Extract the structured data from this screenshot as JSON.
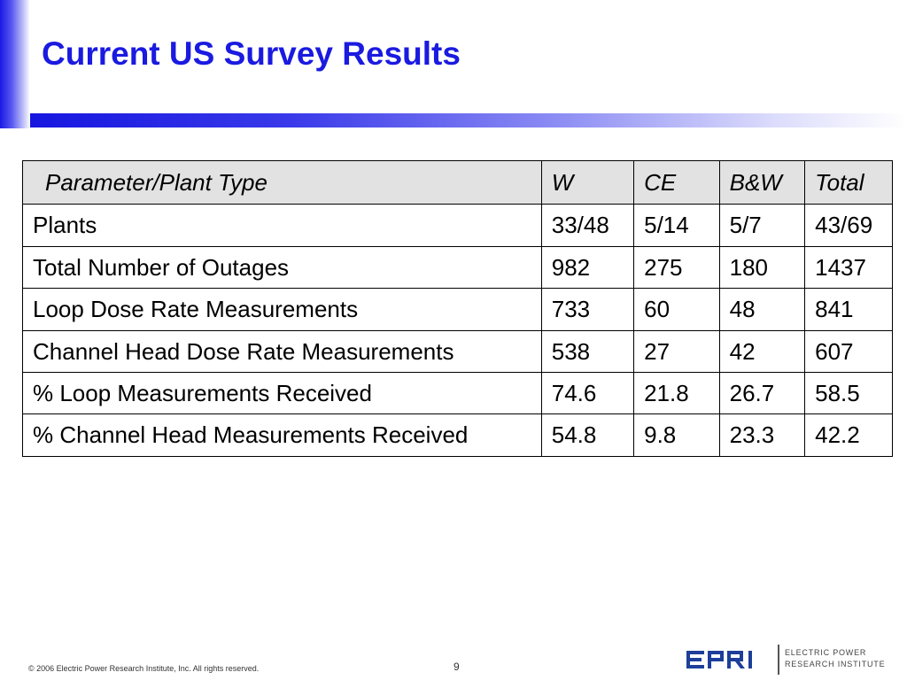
{
  "slide": {
    "title": "Current US Survey Results",
    "footer": {
      "copyright": "© 2006 Electric Power Research Institute, Inc. All rights reserved.",
      "page_number": "9"
    },
    "logo": {
      "mark_text": "EPRI",
      "name_line1": "ELECTRIC POWER",
      "name_line2": "RESEARCH INSTITUTE"
    }
  },
  "colors": {
    "title": "#1a1ae0",
    "accent_bar": "#1616e0",
    "header_fill": "#e2e2e2",
    "logo_blue": "#1d3f9a"
  },
  "table": {
    "headers": [
      "Parameter/Plant Type",
      "W",
      "CE",
      "B&W",
      "Total"
    ],
    "rows": [
      [
        "Plants",
        "33/48",
        "5/14",
        "5/7",
        "43/69"
      ],
      [
        "Total Number of Outages",
        "982",
        "275",
        "180",
        "1437"
      ],
      [
        "Loop Dose Rate Measurements",
        "733",
        "60",
        "48",
        "841"
      ],
      [
        "Channel Head Dose Rate Measurements",
        "538",
        "27",
        "42",
        "607"
      ],
      [
        "% Loop Measurements Received",
        "74.6",
        "21.8",
        "26.7",
        "58.5"
      ],
      [
        "% Channel Head Measurements Received",
        "54.8",
        "9.8",
        "23.3",
        "42.2"
      ]
    ]
  }
}
